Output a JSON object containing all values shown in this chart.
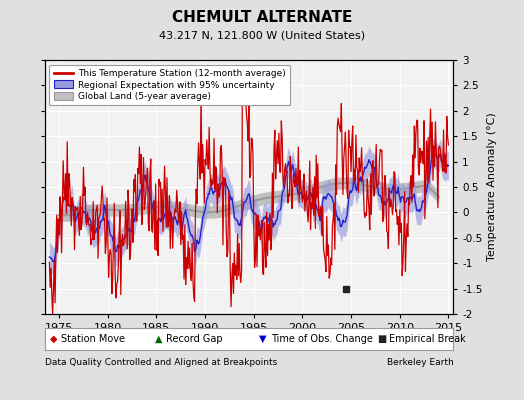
{
  "title": "CHEMULT ALTERNATE",
  "subtitle": "43.217 N, 121.800 W (United States)",
  "legend_labels": [
    "This Temperature Station (12-month average)",
    "Regional Expectation with 95% uncertainty",
    "Global Land (5-year average)"
  ],
  "bottom_legend": [
    {
      "marker": "D",
      "color": "#cc0000",
      "label": "Station Move"
    },
    {
      "marker": "^",
      "color": "#006600",
      "label": "Record Gap"
    },
    {
      "marker": "v",
      "color": "#0000cc",
      "label": "Time of Obs. Change"
    },
    {
      "marker": "s",
      "color": "#222222",
      "label": "Empirical Break"
    }
  ],
  "empirical_break_x": 2004.5,
  "empirical_break_y": -1.5,
  "xlabel_left": "Data Quality Controlled and Aligned at Breakpoints",
  "xlabel_right": "Berkeley Earth",
  "ylim": [
    -2.0,
    3.0
  ],
  "xlim": [
    1973.5,
    2015.5
  ],
  "xticks": [
    1975,
    1980,
    1985,
    1990,
    1995,
    2000,
    2005,
    2010,
    2015
  ],
  "yticks": [
    -2,
    -1.5,
    -1,
    -0.5,
    0,
    0.5,
    1,
    1.5,
    2,
    2.5,
    3
  ],
  "ylabel": "Temperature Anomaly (°C)",
  "bg_color": "#e0e0e0",
  "plot_bg_color": "#f2f2f2",
  "red_line_color": "#cc0000",
  "blue_line_color": "#2222cc",
  "blue_fill_color": "#9999dd",
  "gray_line_color": "#999999",
  "gray_fill_color": "#c0c0c0"
}
